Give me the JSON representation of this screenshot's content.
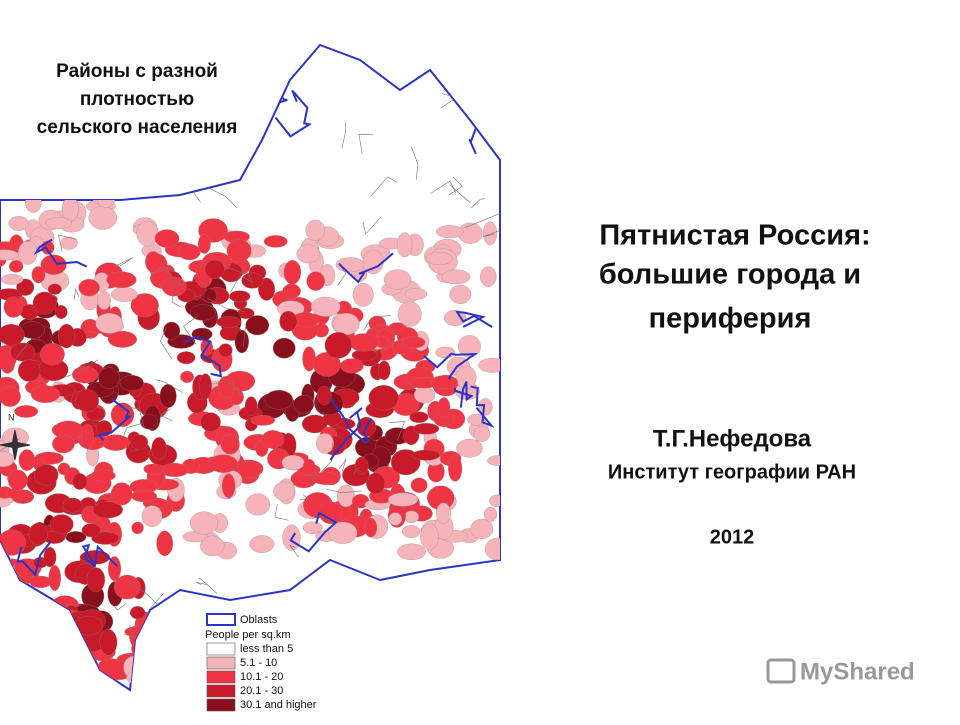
{
  "map_title": [
    "Районы с разной",
    "плотностью",
    "сельского населения"
  ],
  "slide": {
    "title": [
      "Пятнистая Россия:",
      "большие города и",
      "периферия"
    ],
    "author": "Т.Г.Нефедова",
    "institute": "Институт географии РАН",
    "year": "2012"
  },
  "compass": "N",
  "legend": {
    "boundary": "Oblasts",
    "heading": "People per sq.km",
    "classes": [
      {
        "label": "less than 5",
        "color": "#ffffff"
      },
      {
        "label": "5.1 - 10",
        "color": "#f6b3ba"
      },
      {
        "label": "10.1 - 20",
        "color": "#ef3444"
      },
      {
        "label": "20.1 - 30",
        "color": "#c81a28"
      },
      {
        "label": "30.1 and higher",
        "color": "#8a0f1c"
      }
    ]
  },
  "watermark": "MyShared"
}
